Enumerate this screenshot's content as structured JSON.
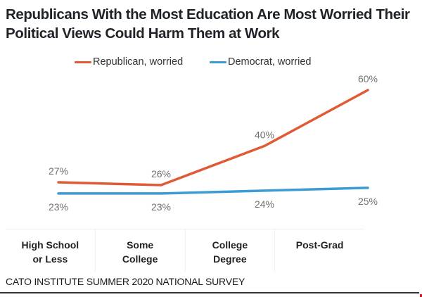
{
  "chart_data": {
    "type": "line",
    "title": "Republicans With the Most Education Are Most Worried Their Political Views Could Harm Them at Work",
    "categories": [
      "High School or Less",
      "Some College",
      "College Degree",
      "Post-Grad"
    ],
    "category_lines": [
      [
        "High School",
        "or Less"
      ],
      [
        "Some",
        "College"
      ],
      [
        "College",
        "Degree"
      ],
      [
        "Post-Grad"
      ]
    ],
    "series": [
      {
        "name": "Republican, worried",
        "color": "#e05a36",
        "values": [
          27,
          26,
          40,
          60
        ],
        "labels": [
          "27%",
          "26%",
          "40%",
          "60%"
        ],
        "label_position": "above"
      },
      {
        "name": "Democrat, worried",
        "color": "#3a9bd5",
        "values": [
          23,
          23,
          24,
          25
        ],
        "labels": [
          "23%",
          "23%",
          "24%",
          "25%"
        ],
        "label_position": "below"
      }
    ],
    "xlabel": "",
    "ylabel": "",
    "y_unit": "%",
    "ylim": [
      15,
      65
    ],
    "grid": false,
    "legend_position": "top-center"
  },
  "source": "CATO INSTITUTE SUMMER 2020 NATIONAL SURVEY",
  "colors": {
    "accent_corner": "#d71920",
    "rule": "#333333"
  }
}
